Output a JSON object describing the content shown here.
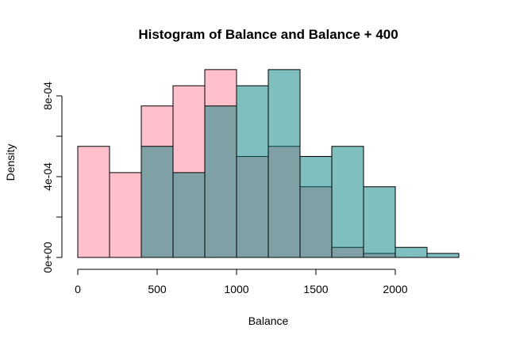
{
  "chart_data": {
    "type": "bar",
    "title": "Histogram of Balance and Balance + 400",
    "xlabel": "Balance",
    "ylabel": "Density",
    "xlim": [
      0,
      2500
    ],
    "ylim": [
      0,
      0.00093
    ],
    "x_ticks": [
      0,
      500,
      1000,
      1500,
      2000
    ],
    "x_tick_labels": [
      "0",
      "500",
      "1000",
      "1500",
      "2000"
    ],
    "y_ticks": [
      0,
      0.0002,
      0.0004,
      0.0006,
      0.0008
    ],
    "y_tick_labels": [
      "0e+00",
      "",
      "4e-04",
      "",
      "8e-04"
    ],
    "grid": false,
    "series": [
      {
        "color": "#FFC0CB",
        "bin_edges": [
          0,
          200,
          400,
          600,
          800,
          1000,
          1200,
          1400,
          1600,
          1800,
          2000
        ],
        "values": [
          0.00055,
          0.00042,
          0.00075,
          0.00085,
          0.00093,
          0.0005,
          0.00055,
          0.00035,
          5e-05,
          2e-05
        ]
      },
      {
        "color": "#66B2B2",
        "bin_edges": [
          400,
          600,
          800,
          1000,
          1200,
          1400,
          1600,
          1800,
          2000,
          2200,
          2400
        ],
        "values": [
          0.00055,
          0.00042,
          0.00075,
          0.00085,
          0.00093,
          0.0005,
          0.00055,
          0.00035,
          5e-05,
          2e-05
        ]
      }
    ]
  }
}
